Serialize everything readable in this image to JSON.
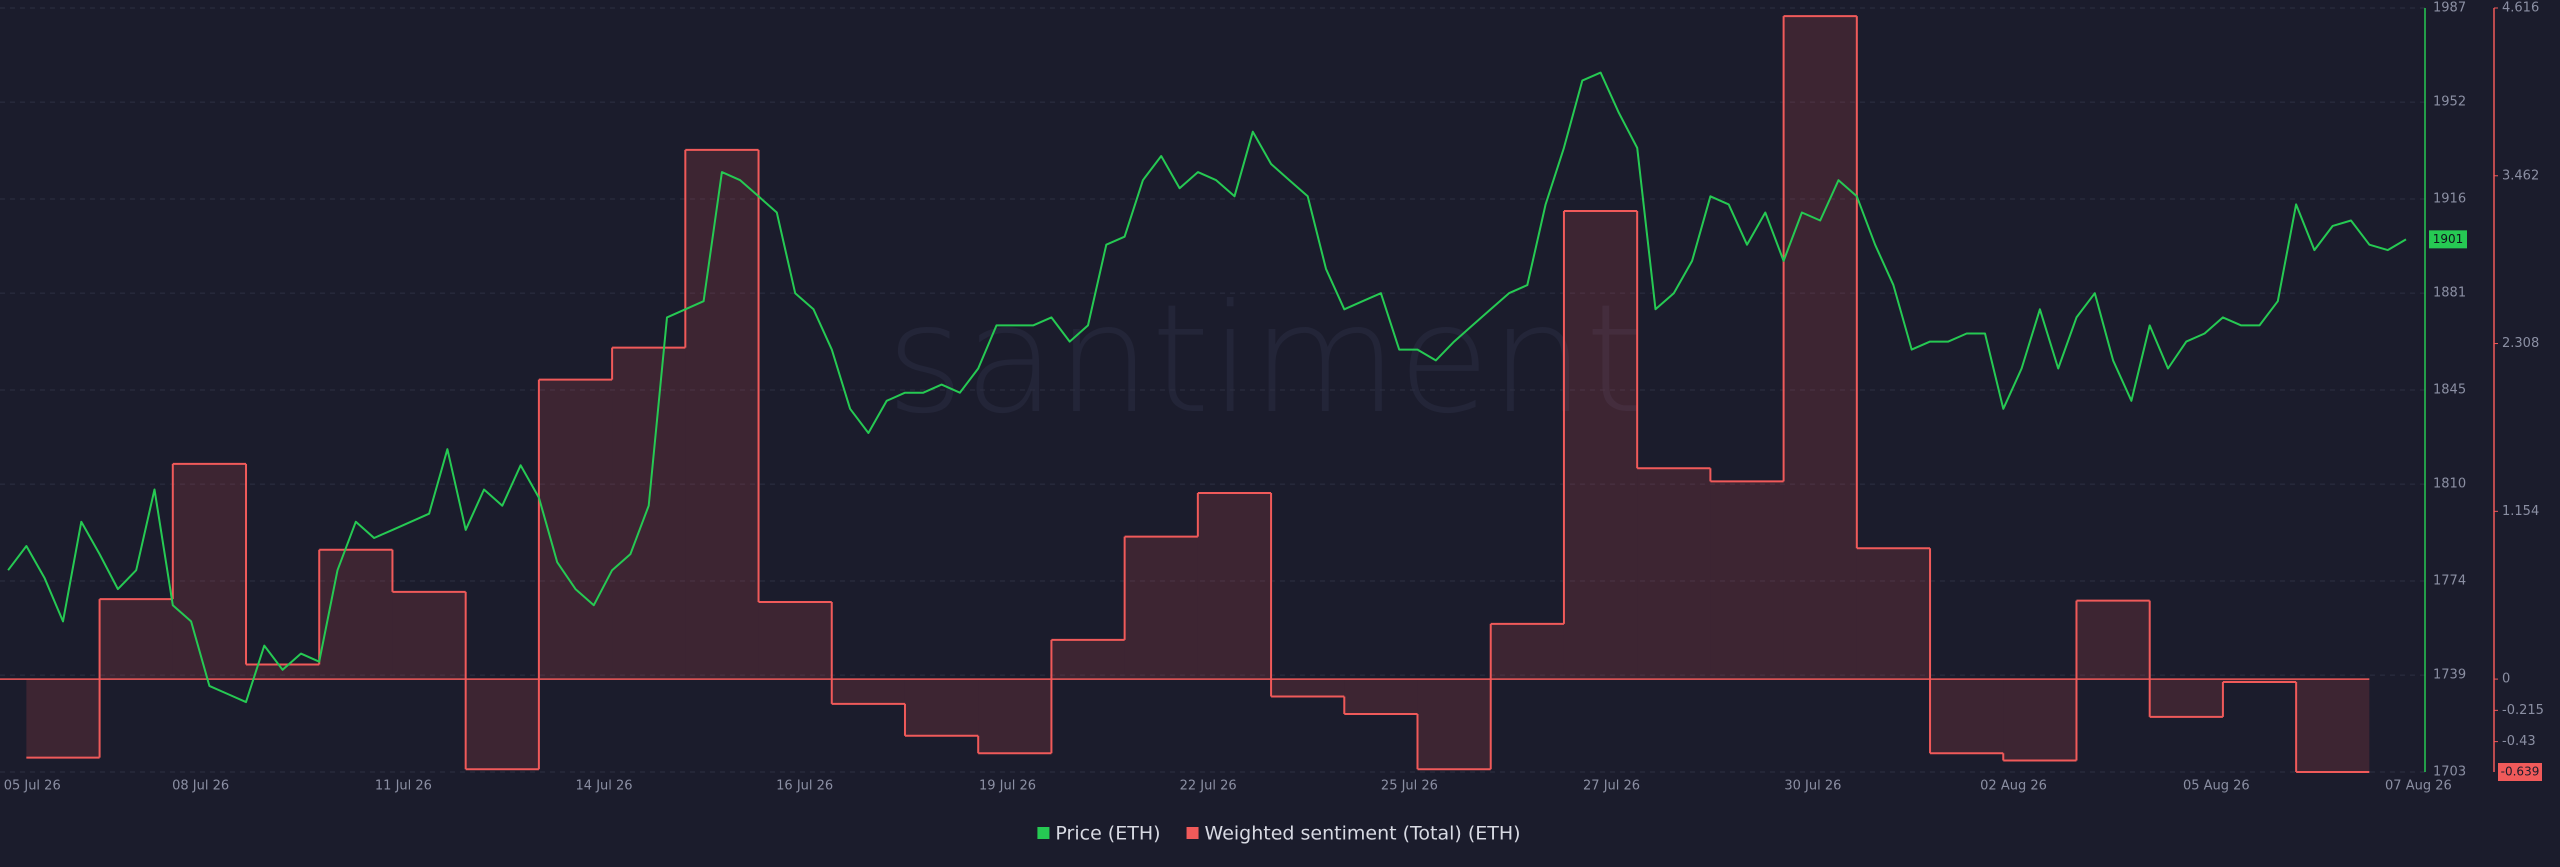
{
  "chart_data": {
    "type": "line",
    "watermark": "santiment",
    "xlim": [
      -0.86,
      32.26
    ],
    "xticks": [
      {
        "value": -0.42,
        "label": "05 Jul 26"
      },
      {
        "value": 1.88,
        "label": "08 Jul 26"
      },
      {
        "value": 4.65,
        "label": "11 Jul 26"
      },
      {
        "value": 7.39,
        "label": "14 Jul 26"
      },
      {
        "value": 10.13,
        "label": "16 Jul 26"
      },
      {
        "value": 12.9,
        "label": "19 Jul 26"
      },
      {
        "value": 15.64,
        "label": "22 Jul 26"
      },
      {
        "value": 18.39,
        "label": "25 Jul 26"
      },
      {
        "value": 21.15,
        "label": "27 Jul 26"
      },
      {
        "value": 23.9,
        "label": "30 Jul 26"
      },
      {
        "value": 26.64,
        "label": "02 Aug 26"
      },
      {
        "value": 29.41,
        "label": "05 Aug 26"
      },
      {
        "value": 32.17,
        "label": "07 Aug 26"
      }
    ],
    "ylim": [
      1703,
      1987
    ],
    "yticks": [
      1703,
      1739,
      1774,
      1810,
      1845,
      1881,
      1916,
      1952,
      1987
    ],
    "y2lim": [
      -0.639,
      4.616
    ],
    "y2ticks": [
      4.616,
      3.462,
      2.308,
      1.154,
      0,
      -0.215,
      -0.43
    ],
    "grid": true,
    "legend": "bottom",
    "series": [
      {
        "name": "Price (ETH)",
        "color": "#26c953",
        "axis": "y",
        "x": [
          -0.75,
          -0.5,
          -0.25,
          0,
          0.25,
          0.5,
          0.75,
          1,
          1.25,
          1.5,
          1.75,
          2,
          2.25,
          2.5,
          2.75,
          3,
          3.25,
          3.5,
          3.75,
          4,
          4.25,
          4.5,
          4.75,
          5,
          5.25,
          5.5,
          5.75,
          6,
          6.25,
          6.5,
          6.75,
          7,
          7.25,
          7.5,
          7.75,
          8,
          8.25,
          8.5,
          8.75,
          9,
          9.25,
          9.5,
          9.75,
          10,
          10.25,
          10.5,
          10.75,
          11,
          11.25,
          11.5,
          11.75,
          12,
          12.25,
          12.5,
          12.75,
          13,
          13.25,
          13.5,
          13.75,
          14,
          14.25,
          14.5,
          14.75,
          15,
          15.25,
          15.5,
          15.75,
          16,
          16.25,
          16.5,
          16.75,
          17,
          17.25,
          17.5,
          17.75,
          18,
          18.25,
          18.5,
          18.75,
          19,
          19.25,
          19.5,
          19.75,
          20,
          20.25,
          20.5,
          20.75,
          21,
          21.25,
          21.5,
          21.75,
          22,
          22.25,
          22.5,
          22.75,
          23,
          23.25,
          23.5,
          23.75,
          24,
          24.25,
          24.5,
          24.75,
          25,
          25.25,
          25.5,
          25.75,
          26,
          26.25,
          26.5,
          26.75,
          27,
          27.25,
          27.5,
          27.75,
          28,
          28.25,
          28.5,
          28.75,
          29,
          29.25,
          29.5,
          29.75,
          30,
          30.25,
          30.5,
          30.75,
          31,
          31.25,
          31.5,
          31.75,
          32
        ],
        "values": [
          1778,
          1787,
          1775,
          1759,
          1796,
          1784,
          1771,
          1778,
          1808,
          1765,
          1759,
          1735,
          1732,
          1729,
          1750,
          1741,
          1747,
          1744,
          1778,
          1796,
          1790,
          1793,
          1796,
          1799,
          1823,
          1793,
          1808,
          1802,
          1817,
          1805,
          1781,
          1771,
          1765,
          1778,
          1784,
          1802,
          1872,
          1875,
          1878,
          1926,
          1923,
          1917,
          1911,
          1881,
          1875,
          1860,
          1838,
          1829,
          1841,
          1844,
          1844,
          1847,
          1844,
          1853,
          1869,
          1869,
          1869,
          1872,
          1863,
          1869,
          1899,
          1902,
          1923,
          1932,
          1920,
          1926,
          1923,
          1917,
          1941,
          1929,
          1923,
          1917,
          1890,
          1875,
          1878,
          1881,
          1860,
          1860,
          1856,
          1863,
          1869,
          1875,
          1881,
          1884,
          1914,
          1935,
          1960,
          1963,
          1948,
          1935,
          1875,
          1881,
          1893,
          1917,
          1914,
          1899,
          1911,
          1893,
          1911,
          1908,
          1923,
          1917,
          1899,
          1884,
          1860,
          1863,
          1863,
          1866,
          1866,
          1838,
          1853,
          1875,
          1853,
          1872,
          1881,
          1856,
          1841,
          1869,
          1853,
          1863,
          1866,
          1872,
          1869,
          1869,
          1878,
          1914,
          1897,
          1906,
          1908,
          1899,
          1897,
          1901
        ]
      },
      {
        "name": "Weighted sentiment (Total) (ETH)",
        "color": "#f05a5a",
        "axis": "y2",
        "type": "step-area",
        "x": [
          0,
          1,
          2,
          3,
          4,
          5,
          6,
          7,
          8,
          9,
          10,
          11,
          12,
          13,
          14,
          15,
          16,
          17,
          18,
          19,
          20,
          21,
          22,
          23,
          24,
          25,
          26,
          27,
          28,
          29,
          30,
          31
        ],
        "values": [
          -0.54,
          0.55,
          1.48,
          0.1,
          0.89,
          0.6,
          -0.62,
          2.06,
          2.28,
          3.64,
          0.53,
          -0.17,
          -0.39,
          -0.51,
          0.27,
          0.98,
          1.28,
          -0.12,
          -0.24,
          -0.62,
          0.38,
          3.22,
          1.45,
          1.36,
          4.56,
          0.9,
          -0.51,
          -0.56,
          0.54,
          -0.26,
          -0.02,
          -0.639
        ]
      }
    ]
  }
}
